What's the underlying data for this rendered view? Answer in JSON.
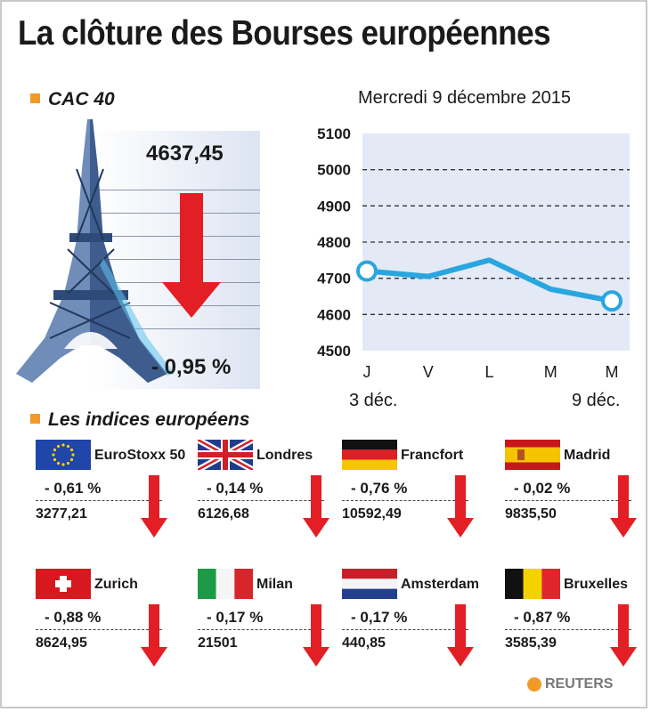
{
  "title": "La clôture des Bourses européennes",
  "cac": {
    "section_label": "CAC 40",
    "value": "4637,45",
    "change": "- 0,95  %"
  },
  "chart_data": {
    "type": "line",
    "title": "Mercredi 9 décembre 2015",
    "x": [
      "J",
      "V",
      "L",
      "M",
      "M"
    ],
    "x_dates": {
      "first": "3 déc.",
      "last": "9 déc."
    },
    "series": [
      {
        "values": [
          4720,
          4705,
          4750,
          4670,
          4637.45
        ]
      }
    ],
    "yticks": [
      4500,
      4600,
      4700,
      4800,
      4900,
      5000,
      5100
    ],
    "ylim": [
      4500,
      5100
    ],
    "grid": "dashed horizontal",
    "color": "#29a6e0"
  },
  "indices_label": "Les indices européens",
  "indices": [
    {
      "name": "EuroStoxx 50",
      "change": "- 0,61  %",
      "value": "3277,21",
      "flag": "eu-flag"
    },
    {
      "name": "Londres",
      "change": "- 0,14  %",
      "value": "6126,68",
      "flag": "uk-flag"
    },
    {
      "name": "Francfort",
      "change": "- 0,76  %",
      "value": "10592,49",
      "flag": "germany-flag"
    },
    {
      "name": "Madrid",
      "change": "- 0,02  %",
      "value": "9835,50",
      "flag": "spain-flag"
    },
    {
      "name": "Zurich",
      "change": "- 0,88  %",
      "value": "8624,95",
      "flag": "switzerland-flag"
    },
    {
      "name": "Milan",
      "change": "- 0,17  %",
      "value": "21501",
      "flag": "italy-flag"
    },
    {
      "name": "Amsterdam",
      "change": "- 0,17  %",
      "value": "440,85",
      "flag": "netherlands-flag"
    },
    {
      "name": "Bruxelles",
      "change": "- 0,87  %",
      "value": "3585,39",
      "flag": "belgium-flag"
    }
  ],
  "colors": {
    "down_arrow": "#e31e24",
    "line": "#29a6e0",
    "accent": "#f09a2a"
  },
  "brand": "REUTERS"
}
